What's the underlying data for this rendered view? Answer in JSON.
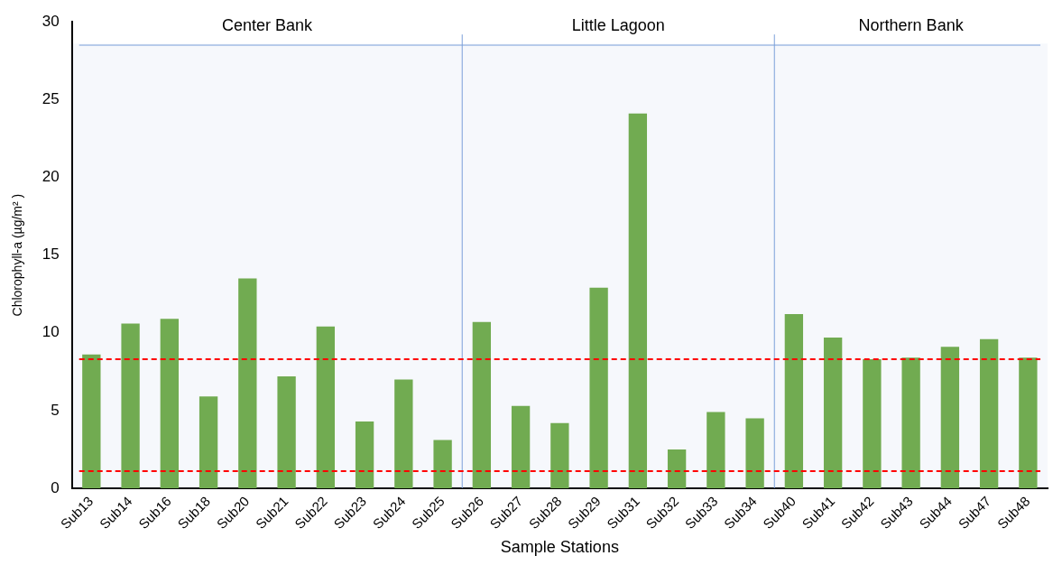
{
  "chart_data": {
    "type": "bar",
    "xlabel": "Sample Stations",
    "ylabel": "Chlorophyll-a (µg/m² )",
    "categories": [
      "Sub13",
      "Sub14",
      "Sub16",
      "Sub18",
      "Sub20",
      "Sub21",
      "Sub22",
      "Sub23",
      "Sub24",
      "Sub25",
      "Sub26",
      "Sub27",
      "Sub28",
      "Sub29",
      "Sub31",
      "Sub32",
      "Sub33",
      "Sub34",
      "Sub40",
      "Sub41",
      "Sub42",
      "Sub43",
      "Sub44",
      "Sub47",
      "Sub48"
    ],
    "values": [
      8.6,
      10.6,
      10.9,
      5.9,
      13.5,
      7.2,
      10.4,
      4.3,
      7.0,
      3.1,
      10.7,
      5.3,
      4.2,
      12.9,
      24.1,
      2.5,
      4.9,
      4.5,
      11.2,
      9.7,
      8.3,
      8.4,
      9.1,
      9.6,
      8.4
    ],
    "color": "#70ad47",
    "ylim": [
      0,
      30
    ],
    "yticks": [
      0,
      5,
      10,
      15,
      20,
      25,
      30
    ],
    "grid": false,
    "ref_lines": [
      {
        "axis": "y",
        "value": 8.3,
        "color": "#ff0000",
        "line_style": "dashed"
      },
      {
        "axis": "y",
        "value": 1.1,
        "color": "#ff0000",
        "line_style": "dashed"
      },
      {
        "axis": "y",
        "value": 28.5,
        "color": "#7a9fd9",
        "line_style": "solid"
      }
    ],
    "bands": [
      {
        "axis": "x",
        "from": "Sub13",
        "to": "Sub25",
        "label": "Center Bank",
        "color": "#7a9fd9"
      },
      {
        "axis": "x",
        "from": "Sub26",
        "to": "Sub34",
        "label": "Little Lagoon",
        "color": "#7a9fd9"
      },
      {
        "axis": "x",
        "from": "Sub40",
        "to": "Sub48",
        "label": "Northern Bank",
        "color": "#7a9fd9"
      }
    ]
  }
}
